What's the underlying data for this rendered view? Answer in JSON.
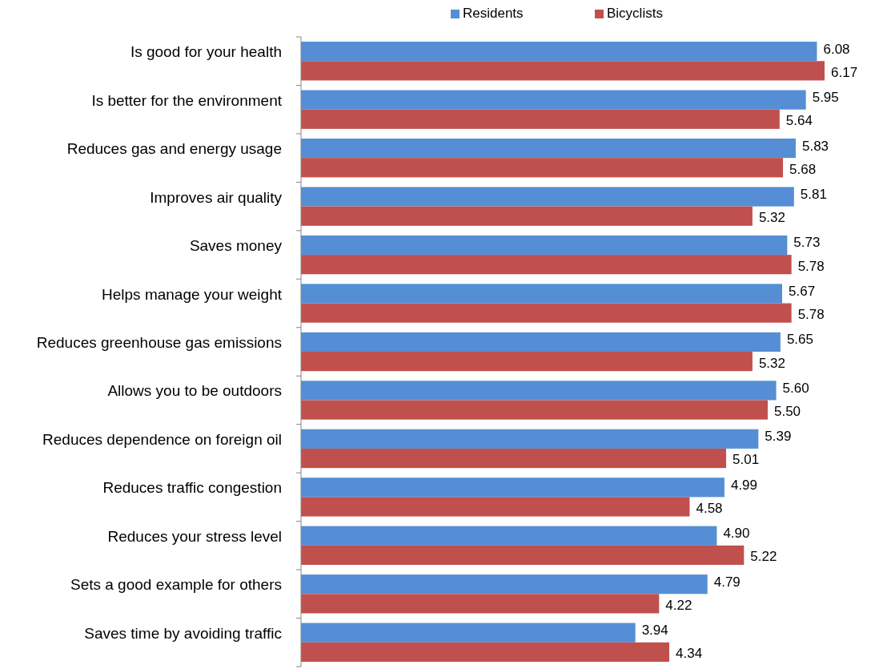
{
  "chart_data": {
    "type": "bar",
    "orientation": "horizontal",
    "categories": [
      "Is good for your health",
      "Is better for the environment",
      "Reduces gas and energy usage",
      "Improves air quality",
      "Saves money",
      "Helps manage your weight",
      "Reduces greenhouse gas emissions",
      "Allows you to be outdoors",
      "Reduces dependence on foreign oil",
      "Reduces traffic congestion",
      "Reduces your stress level",
      "Sets a good example for others",
      "Saves time by avoiding traffic"
    ],
    "series": [
      {
        "name": "Residents",
        "color": "#558ed5",
        "values": [
          6.08,
          5.95,
          5.83,
          5.81,
          5.73,
          5.67,
          5.65,
          5.6,
          5.39,
          4.99,
          4.9,
          4.79,
          3.94
        ],
        "value_labels": [
          "6.08",
          "5.95",
          "5.83",
          "5.81",
          "5.73",
          "5.67",
          "5.65",
          "5.60",
          "5.39",
          "4.99",
          "4.90",
          "4.79",
          "3.94"
        ]
      },
      {
        "name": "Bicyclists",
        "color": "#c0504d",
        "values": [
          6.17,
          5.64,
          5.68,
          5.32,
          5.78,
          5.78,
          5.32,
          5.5,
          5.01,
          4.58,
          5.22,
          4.22,
          4.34
        ],
        "value_labels": [
          "6.17",
          "5.64",
          "5.68",
          "5.32",
          "5.78",
          "5.78",
          "5.32",
          "5.50",
          "5.01",
          "4.58",
          "5.22",
          "4.22",
          "4.34"
        ]
      }
    ],
    "legend": "top"
  }
}
